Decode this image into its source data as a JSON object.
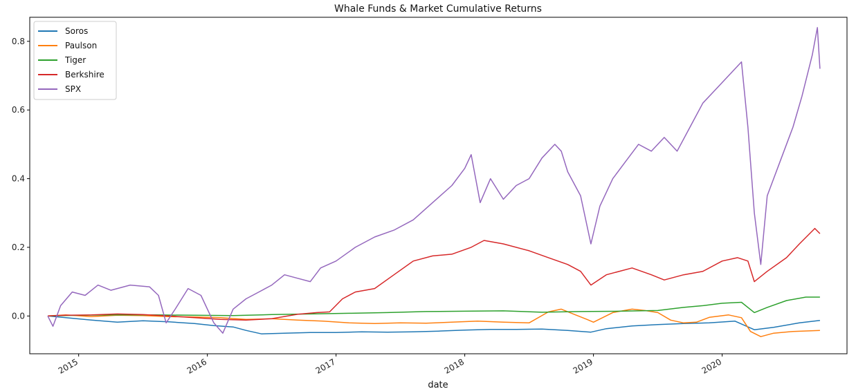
{
  "chart_data": {
    "type": "line",
    "title": "Whale Funds & Market Cumulative Returns",
    "xlabel": "date",
    "ylabel": "",
    "xlim": [
      2014.62,
      2020.97
    ],
    "ylim": [
      -0.11,
      0.87
    ],
    "x_ticks": [
      2015,
      2016,
      2017,
      2018,
      2019,
      2020
    ],
    "x_tick_labels": [
      "2015",
      "2016",
      "2017",
      "2018",
      "2019",
      "2020"
    ],
    "y_ticks": [
      0.0,
      0.2,
      0.4,
      0.6,
      0.8
    ],
    "y_tick_labels": [
      "0.0",
      "0.2",
      "0.4",
      "0.6",
      "0.8"
    ],
    "grid": false,
    "legend_position": "top-left",
    "series": [
      {
        "name": "Soros",
        "color": "#1f77b4",
        "points": [
          [
            2014.76,
            0.0
          ],
          [
            2014.9,
            -0.005
          ],
          [
            2015.1,
            -0.012
          ],
          [
            2015.3,
            -0.018
          ],
          [
            2015.5,
            -0.014
          ],
          [
            2015.7,
            -0.017
          ],
          [
            2015.9,
            -0.022
          ],
          [
            2016.05,
            -0.028
          ],
          [
            2016.2,
            -0.032
          ],
          [
            2016.3,
            -0.042
          ],
          [
            2016.42,
            -0.052
          ],
          [
            2016.6,
            -0.05
          ],
          [
            2016.8,
            -0.048
          ],
          [
            2017.0,
            -0.048
          ],
          [
            2017.2,
            -0.046
          ],
          [
            2017.4,
            -0.047
          ],
          [
            2017.6,
            -0.046
          ],
          [
            2017.8,
            -0.044
          ],
          [
            2018.0,
            -0.041
          ],
          [
            2018.2,
            -0.039
          ],
          [
            2018.4,
            -0.039
          ],
          [
            2018.6,
            -0.038
          ],
          [
            2018.8,
            -0.042
          ],
          [
            2018.98,
            -0.047
          ],
          [
            2019.1,
            -0.037
          ],
          [
            2019.3,
            -0.029
          ],
          [
            2019.5,
            -0.025
          ],
          [
            2019.7,
            -0.022
          ],
          [
            2019.9,
            -0.02
          ],
          [
            2020.1,
            -0.015
          ],
          [
            2020.25,
            -0.04
          ],
          [
            2020.4,
            -0.033
          ],
          [
            2020.6,
            -0.02
          ],
          [
            2020.76,
            -0.013
          ]
        ]
      },
      {
        "name": "Paulson",
        "color": "#ff7f0e",
        "points": [
          [
            2014.76,
            0.0
          ],
          [
            2014.9,
            0.003
          ],
          [
            2015.1,
            -0.002
          ],
          [
            2015.3,
            0.002
          ],
          [
            2015.5,
            0.001
          ],
          [
            2015.7,
            -0.002
          ],
          [
            2015.9,
            -0.003
          ],
          [
            2016.1,
            -0.005
          ],
          [
            2016.3,
            -0.01
          ],
          [
            2016.5,
            -0.008
          ],
          [
            2016.7,
            -0.012
          ],
          [
            2016.9,
            -0.015
          ],
          [
            2017.1,
            -0.02
          ],
          [
            2017.3,
            -0.022
          ],
          [
            2017.5,
            -0.02
          ],
          [
            2017.7,
            -0.021
          ],
          [
            2017.9,
            -0.018
          ],
          [
            2018.1,
            -0.015
          ],
          [
            2018.3,
            -0.018
          ],
          [
            2018.5,
            -0.02
          ],
          [
            2018.65,
            0.012
          ],
          [
            2018.75,
            0.02
          ],
          [
            2018.85,
            0.005
          ],
          [
            2018.95,
            -0.01
          ],
          [
            2019.0,
            -0.018
          ],
          [
            2019.15,
            0.01
          ],
          [
            2019.3,
            0.02
          ],
          [
            2019.4,
            0.016
          ],
          [
            2019.5,
            0.01
          ],
          [
            2019.6,
            -0.012
          ],
          [
            2019.7,
            -0.02
          ],
          [
            2019.8,
            -0.018
          ],
          [
            2019.9,
            -0.004
          ],
          [
            2020.05,
            0.003
          ],
          [
            2020.15,
            -0.005
          ],
          [
            2020.22,
            -0.045
          ],
          [
            2020.3,
            -0.06
          ],
          [
            2020.4,
            -0.05
          ],
          [
            2020.55,
            -0.045
          ],
          [
            2020.76,
            -0.042
          ]
        ]
      },
      {
        "name": "Tiger",
        "color": "#2ca02c",
        "points": [
          [
            2014.76,
            0.0
          ],
          [
            2015.0,
            0.002
          ],
          [
            2015.3,
            0.003
          ],
          [
            2015.6,
            0.003
          ],
          [
            2015.9,
            0.002
          ],
          [
            2016.2,
            0.001
          ],
          [
            2016.5,
            0.004
          ],
          [
            2016.8,
            0.006
          ],
          [
            2017.1,
            0.008
          ],
          [
            2017.4,
            0.01
          ],
          [
            2017.7,
            0.013
          ],
          [
            2018.0,
            0.014
          ],
          [
            2018.3,
            0.015
          ],
          [
            2018.6,
            0.011
          ],
          [
            2018.9,
            0.013
          ],
          [
            2019.2,
            0.014
          ],
          [
            2019.5,
            0.016
          ],
          [
            2019.7,
            0.025
          ],
          [
            2019.85,
            0.03
          ],
          [
            2020.0,
            0.037
          ],
          [
            2020.15,
            0.04
          ],
          [
            2020.25,
            0.01
          ],
          [
            2020.35,
            0.025
          ],
          [
            2020.5,
            0.045
          ],
          [
            2020.65,
            0.055
          ],
          [
            2020.76,
            0.055
          ]
        ]
      },
      {
        "name": "Berkshire",
        "color": "#d62728",
        "points": [
          [
            2014.76,
            0.0
          ],
          [
            2014.9,
            0.002
          ],
          [
            2015.1,
            0.003
          ],
          [
            2015.3,
            0.006
          ],
          [
            2015.5,
            0.004
          ],
          [
            2015.7,
            0.0
          ],
          [
            2015.9,
            -0.005
          ],
          [
            2016.1,
            -0.01
          ],
          [
            2016.3,
            -0.012
          ],
          [
            2016.5,
            -0.008
          ],
          [
            2016.7,
            0.005
          ],
          [
            2016.85,
            0.01
          ],
          [
            2016.95,
            0.012
          ],
          [
            2017.05,
            0.05
          ],
          [
            2017.15,
            0.07
          ],
          [
            2017.3,
            0.08
          ],
          [
            2017.45,
            0.12
          ],
          [
            2017.6,
            0.16
          ],
          [
            2017.75,
            0.175
          ],
          [
            2017.9,
            0.18
          ],
          [
            2018.05,
            0.2
          ],
          [
            2018.15,
            0.22
          ],
          [
            2018.3,
            0.21
          ],
          [
            2018.5,
            0.19
          ],
          [
            2018.65,
            0.17
          ],
          [
            2018.8,
            0.15
          ],
          [
            2018.9,
            0.13
          ],
          [
            2018.98,
            0.09
          ],
          [
            2019.1,
            0.12
          ],
          [
            2019.3,
            0.14
          ],
          [
            2019.45,
            0.12
          ],
          [
            2019.55,
            0.105
          ],
          [
            2019.7,
            0.12
          ],
          [
            2019.85,
            0.13
          ],
          [
            2020.0,
            0.16
          ],
          [
            2020.12,
            0.17
          ],
          [
            2020.2,
            0.16
          ],
          [
            2020.25,
            0.1
          ],
          [
            2020.35,
            0.13
          ],
          [
            2020.5,
            0.17
          ],
          [
            2020.6,
            0.21
          ],
          [
            2020.72,
            0.255
          ],
          [
            2020.76,
            0.24
          ]
        ]
      },
      {
        "name": "SPX",
        "color": "#9467bd",
        "points": [
          [
            2014.76,
            0.0
          ],
          [
            2014.8,
            -0.03
          ],
          [
            2014.86,
            0.03
          ],
          [
            2014.95,
            0.07
          ],
          [
            2015.05,
            0.06
          ],
          [
            2015.15,
            0.09
          ],
          [
            2015.25,
            0.075
          ],
          [
            2015.4,
            0.09
          ],
          [
            2015.55,
            0.085
          ],
          [
            2015.62,
            0.06
          ],
          [
            2015.68,
            -0.02
          ],
          [
            2015.75,
            0.02
          ],
          [
            2015.85,
            0.08
          ],
          [
            2015.95,
            0.06
          ],
          [
            2016.05,
            -0.02
          ],
          [
            2016.12,
            -0.05
          ],
          [
            2016.2,
            0.02
          ],
          [
            2016.3,
            0.05
          ],
          [
            2016.4,
            0.07
          ],
          [
            2016.5,
            0.09
          ],
          [
            2016.6,
            0.12
          ],
          [
            2016.7,
            0.11
          ],
          [
            2016.8,
            0.1
          ],
          [
            2016.88,
            0.14
          ],
          [
            2017.0,
            0.16
          ],
          [
            2017.15,
            0.2
          ],
          [
            2017.3,
            0.23
          ],
          [
            2017.45,
            0.25
          ],
          [
            2017.6,
            0.28
          ],
          [
            2017.75,
            0.33
          ],
          [
            2017.9,
            0.38
          ],
          [
            2018.0,
            0.43
          ],
          [
            2018.05,
            0.47
          ],
          [
            2018.12,
            0.33
          ],
          [
            2018.2,
            0.4
          ],
          [
            2018.3,
            0.34
          ],
          [
            2018.4,
            0.38
          ],
          [
            2018.5,
            0.4
          ],
          [
            2018.6,
            0.46
          ],
          [
            2018.7,
            0.5
          ],
          [
            2018.75,
            0.48
          ],
          [
            2018.8,
            0.42
          ],
          [
            2018.9,
            0.35
          ],
          [
            2018.98,
            0.21
          ],
          [
            2019.05,
            0.32
          ],
          [
            2019.15,
            0.4
          ],
          [
            2019.25,
            0.45
          ],
          [
            2019.35,
            0.5
          ],
          [
            2019.45,
            0.48
          ],
          [
            2019.55,
            0.52
          ],
          [
            2019.65,
            0.48
          ],
          [
            2019.75,
            0.55
          ],
          [
            2019.85,
            0.62
          ],
          [
            2019.95,
            0.66
          ],
          [
            2020.05,
            0.7
          ],
          [
            2020.15,
            0.74
          ],
          [
            2020.2,
            0.55
          ],
          [
            2020.25,
            0.3
          ],
          [
            2020.3,
            0.15
          ],
          [
            2020.35,
            0.35
          ],
          [
            2020.45,
            0.45
          ],
          [
            2020.55,
            0.55
          ],
          [
            2020.62,
            0.64
          ],
          [
            2020.7,
            0.76
          ],
          [
            2020.74,
            0.84
          ],
          [
            2020.76,
            0.72
          ]
        ]
      }
    ]
  }
}
